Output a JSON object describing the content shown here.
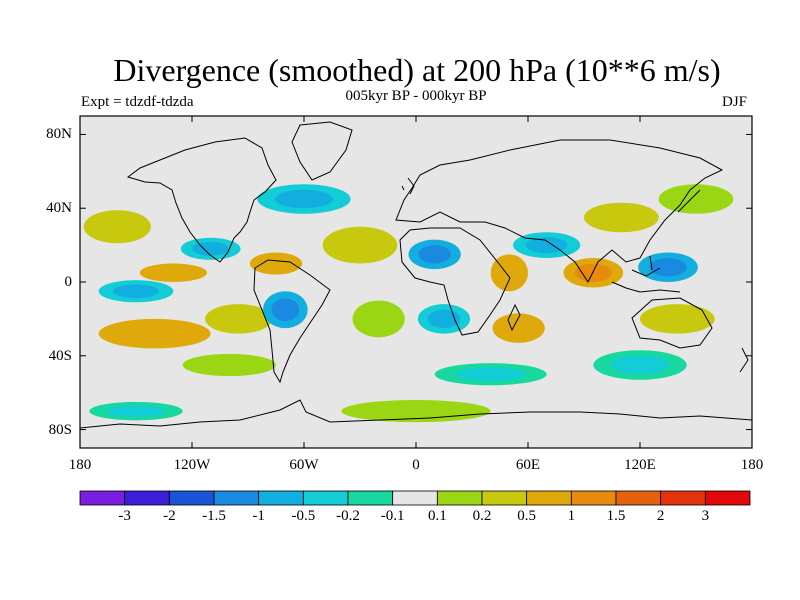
{
  "title": "Divergence (smoothed) at 200 hPa (10**6 m/s)",
  "subtitle": "005kyr BP - 000kyr BP",
  "experiment": "Expt = tdzdf-tdzda",
  "season": "DJF",
  "map": {
    "projection": "cylindrical equidistant",
    "lon_range": [
      -180,
      180
    ],
    "lat_range": [
      -90,
      90
    ],
    "lat_tick_labels": [
      "80N",
      "40N",
      "0",
      "40S",
      "80S"
    ],
    "lat_tick_values": [
      80,
      40,
      0,
      -40,
      -80
    ],
    "lon_tick_labels": [
      "180",
      "120W",
      "60W",
      "0",
      "60E",
      "120E",
      "180"
    ],
    "lon_tick_values": [
      -180,
      -120,
      -60,
      0,
      60,
      120,
      180
    ],
    "background_color": "#e6e6e6",
    "coastline_color": "#000000"
  },
  "colorbar": {
    "labels": [
      "-3",
      "-2",
      "-1.5",
      "-1",
      "-0.5",
      "-0.2",
      "-0.1",
      "0.1",
      "0.2",
      "0.5",
      "1",
      "1.5",
      "2",
      "3"
    ],
    "colors": [
      "#7a1fe0",
      "#3a1ed8",
      "#1a55d8",
      "#1a8ae0",
      "#12aee0",
      "#12ccd6",
      "#18d8a0",
      "#e6e6e6",
      "#9ad613",
      "#c8c80e",
      "#dfa90c",
      "#e88a0c",
      "#e4620e",
      "#e2320e",
      "#e00808"
    ]
  },
  "field_blobs": [
    {
      "lon": -160,
      "lat": 30,
      "rx": 18,
      "ry": 9,
      "v": 0.5
    },
    {
      "lon": -150,
      "lat": -5,
      "rx": 20,
      "ry": 6,
      "v": -0.5
    },
    {
      "lon": -140,
      "lat": -28,
      "rx": 30,
      "ry": 8,
      "v": 1
    },
    {
      "lon": -130,
      "lat": 5,
      "rx": 18,
      "ry": 5,
      "v": 1
    },
    {
      "lon": -110,
      "lat": 18,
      "rx": 16,
      "ry": 6,
      "v": -0.5
    },
    {
      "lon": -95,
      "lat": -20,
      "rx": 18,
      "ry": 8,
      "v": 0.5
    },
    {
      "lon": -70,
      "lat": -15,
      "rx": 12,
      "ry": 10,
      "v": -1
    },
    {
      "lon": -75,
      "lat": 10,
      "rx": 14,
      "ry": 6,
      "v": 1
    },
    {
      "lon": -60,
      "lat": 45,
      "rx": 25,
      "ry": 8,
      "v": -0.5
    },
    {
      "lon": -30,
      "lat": 20,
      "rx": 20,
      "ry": 10,
      "v": 0.5
    },
    {
      "lon": -20,
      "lat": -20,
      "rx": 14,
      "ry": 10,
      "v": 0.2
    },
    {
      "lon": 10,
      "lat": 15,
      "rx": 14,
      "ry": 8,
      "v": -1
    },
    {
      "lon": 15,
      "lat": -20,
      "rx": 14,
      "ry": 8,
      "v": -0.5
    },
    {
      "lon": 50,
      "lat": 5,
      "rx": 10,
      "ry": 10,
      "v": 1
    },
    {
      "lon": 55,
      "lat": -25,
      "rx": 14,
      "ry": 8,
      "v": 1
    },
    {
      "lon": 70,
      "lat": 20,
      "rx": 18,
      "ry": 7,
      "v": -0.5
    },
    {
      "lon": 95,
      "lat": 5,
      "rx": 16,
      "ry": 8,
      "v": 1.5
    },
    {
      "lon": 110,
      "lat": 35,
      "rx": 20,
      "ry": 8,
      "v": 0.5
    },
    {
      "lon": 135,
      "lat": 8,
      "rx": 16,
      "ry": 8,
      "v": -1
    },
    {
      "lon": 140,
      "lat": -20,
      "rx": 20,
      "ry": 8,
      "v": 0.5
    },
    {
      "lon": 150,
      "lat": 45,
      "rx": 20,
      "ry": 8,
      "v": 0.2
    },
    {
      "lon": 120,
      "lat": -45,
      "rx": 25,
      "ry": 8,
      "v": -0.2
    },
    {
      "lon": -100,
      "lat": -45,
      "rx": 25,
      "ry": 6,
      "v": 0.2
    },
    {
      "lon": 40,
      "lat": -50,
      "rx": 30,
      "ry": 6,
      "v": -0.2
    },
    {
      "lon": 0,
      "lat": -70,
      "rx": 40,
      "ry": 6,
      "v": 0.2
    },
    {
      "lon": -150,
      "lat": -70,
      "rx": 25,
      "ry": 5,
      "v": -0.2
    }
  ]
}
